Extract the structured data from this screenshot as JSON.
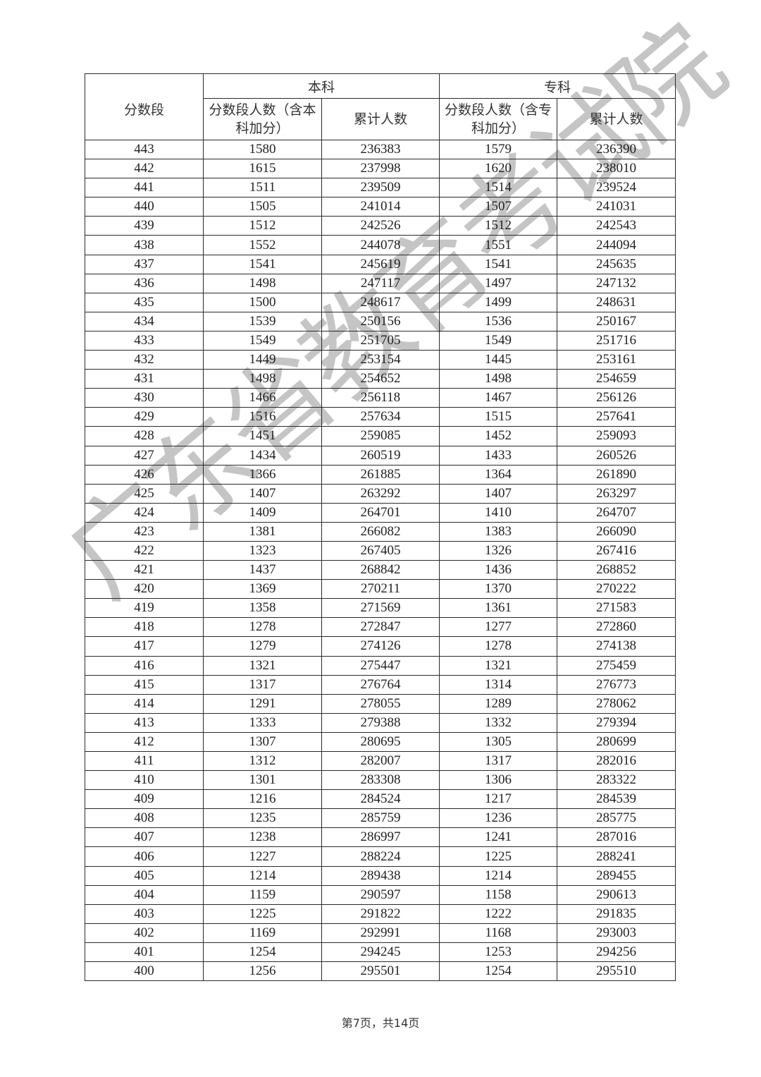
{
  "table": {
    "header": {
      "score_band": "分数段",
      "undergrad": "本科",
      "junior": "专科",
      "undergrad_count": "分数段人数（含本科加分）",
      "undergrad_cumulative": "累计人数",
      "junior_count": "分数段人数（含专科加分）",
      "junior_cumulative": "累计人数"
    },
    "rows": [
      [
        "443",
        "1580",
        "236383",
        "1579",
        "236390"
      ],
      [
        "442",
        "1615",
        "237998",
        "1620",
        "238010"
      ],
      [
        "441",
        "1511",
        "239509",
        "1514",
        "239524"
      ],
      [
        "440",
        "1505",
        "241014",
        "1507",
        "241031"
      ],
      [
        "439",
        "1512",
        "242526",
        "1512",
        "242543"
      ],
      [
        "438",
        "1552",
        "244078",
        "1551",
        "244094"
      ],
      [
        "437",
        "1541",
        "245619",
        "1541",
        "245635"
      ],
      [
        "436",
        "1498",
        "247117",
        "1497",
        "247132"
      ],
      [
        "435",
        "1500",
        "248617",
        "1499",
        "248631"
      ],
      [
        "434",
        "1539",
        "250156",
        "1536",
        "250167"
      ],
      [
        "433",
        "1549",
        "251705",
        "1549",
        "251716"
      ],
      [
        "432",
        "1449",
        "253154",
        "1445",
        "253161"
      ],
      [
        "431",
        "1498",
        "254652",
        "1498",
        "254659"
      ],
      [
        "430",
        "1466",
        "256118",
        "1467",
        "256126"
      ],
      [
        "429",
        "1516",
        "257634",
        "1515",
        "257641"
      ],
      [
        "428",
        "1451",
        "259085",
        "1452",
        "259093"
      ],
      [
        "427",
        "1434",
        "260519",
        "1433",
        "260526"
      ],
      [
        "426",
        "1366",
        "261885",
        "1364",
        "261890"
      ],
      [
        "425",
        "1407",
        "263292",
        "1407",
        "263297"
      ],
      [
        "424",
        "1409",
        "264701",
        "1410",
        "264707"
      ],
      [
        "423",
        "1381",
        "266082",
        "1383",
        "266090"
      ],
      [
        "422",
        "1323",
        "267405",
        "1326",
        "267416"
      ],
      [
        "421",
        "1437",
        "268842",
        "1436",
        "268852"
      ],
      [
        "420",
        "1369",
        "270211",
        "1370",
        "270222"
      ],
      [
        "419",
        "1358",
        "271569",
        "1361",
        "271583"
      ],
      [
        "418",
        "1278",
        "272847",
        "1277",
        "272860"
      ],
      [
        "417",
        "1279",
        "274126",
        "1278",
        "274138"
      ],
      [
        "416",
        "1321",
        "275447",
        "1321",
        "275459"
      ],
      [
        "415",
        "1317",
        "276764",
        "1314",
        "276773"
      ],
      [
        "414",
        "1291",
        "278055",
        "1289",
        "278062"
      ],
      [
        "413",
        "1333",
        "279388",
        "1332",
        "279394"
      ],
      [
        "412",
        "1307",
        "280695",
        "1305",
        "280699"
      ],
      [
        "411",
        "1312",
        "282007",
        "1317",
        "282016"
      ],
      [
        "410",
        "1301",
        "283308",
        "1306",
        "283322"
      ],
      [
        "409",
        "1216",
        "284524",
        "1217",
        "284539"
      ],
      [
        "408",
        "1235",
        "285759",
        "1236",
        "285775"
      ],
      [
        "407",
        "1238",
        "286997",
        "1241",
        "287016"
      ],
      [
        "406",
        "1227",
        "288224",
        "1225",
        "288241"
      ],
      [
        "405",
        "1214",
        "289438",
        "1214",
        "289455"
      ],
      [
        "404",
        "1159",
        "290597",
        "1158",
        "290613"
      ],
      [
        "403",
        "1225",
        "291822",
        "1222",
        "291835"
      ],
      [
        "402",
        "1169",
        "292991",
        "1168",
        "293003"
      ],
      [
        "401",
        "1254",
        "294245",
        "1253",
        "294256"
      ],
      [
        "400",
        "1256",
        "295501",
        "1254",
        "295510"
      ]
    ]
  },
  "footer": "第7页，共14页",
  "watermark": "广东省教育考试院"
}
